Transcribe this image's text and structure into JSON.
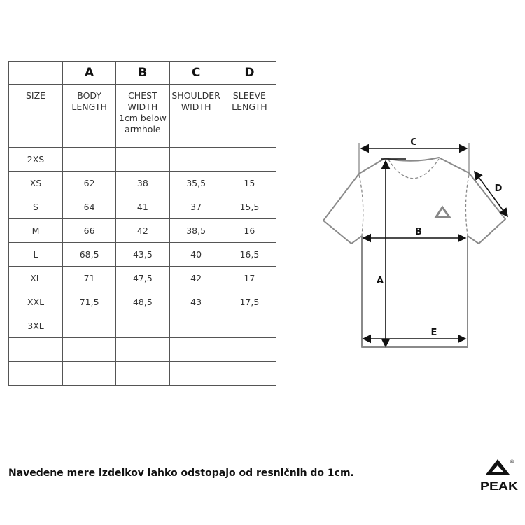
{
  "table": {
    "letters": [
      "",
      "A",
      "B",
      "C",
      "D"
    ],
    "headers": [
      "SIZE",
      "BODY LENGTH",
      "CHEST WIDTH 1cm below armhole",
      "SHOULDER WIDTH",
      "SLEEVE LENGTH"
    ],
    "header_lines": [
      [
        "SIZE"
      ],
      [
        "BODY",
        "LENGTH"
      ],
      [
        "CHEST",
        "WIDTH",
        "1cm below",
        "armhole"
      ],
      [
        "SHOULDER",
        "WIDTH"
      ],
      [
        "SLEEVE",
        "LENGTH"
      ]
    ],
    "rows": [
      [
        "2XS",
        "",
        "",
        "",
        ""
      ],
      [
        "XS",
        "62",
        "38",
        "35,5",
        "15"
      ],
      [
        "S",
        "64",
        "41",
        "37",
        "15,5"
      ],
      [
        "M",
        "66",
        "42",
        "38,5",
        "16"
      ],
      [
        "L",
        "68,5",
        "43,5",
        "40",
        "16,5"
      ],
      [
        "XL",
        "71",
        "47,5",
        "42",
        "17"
      ],
      [
        "XXL",
        "71,5",
        "48,5",
        "43",
        "17,5"
      ],
      [
        "3XL",
        "",
        "",
        "",
        ""
      ],
      [
        "",
        "",
        "",
        "",
        ""
      ],
      [
        "",
        "",
        "",
        "",
        ""
      ]
    ]
  },
  "diagram": {
    "labels": {
      "A": "A",
      "B": "B",
      "C": "C",
      "D": "D",
      "E": "E"
    },
    "outline_color": "#8a8a8a",
    "arrow_color": "#111111"
  },
  "footer": {
    "note": "Navedene mere izdelkov lahko odstopajo od resničnih do 1cm.",
    "logo_text": "PEAK"
  }
}
